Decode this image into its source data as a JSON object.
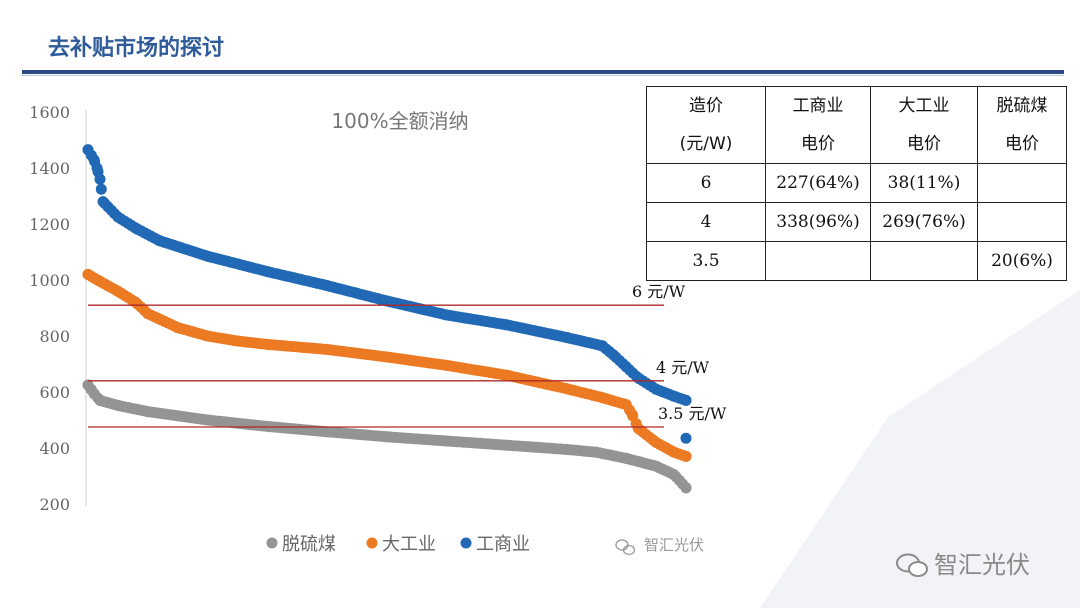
{
  "slide": {
    "title": "去补贴市场的探讨",
    "footer_logo": "智汇光伏",
    "watermark": "智汇光伏"
  },
  "table": {
    "header": [
      [
        "造价",
        "(元/W)"
      ],
      [
        "工商业",
        "电价"
      ],
      [
        "大工业",
        "电价"
      ],
      [
        "脱硫煤",
        "电价"
      ]
    ],
    "rows": [
      [
        "6",
        "227(64%)",
        "38(11%)",
        ""
      ],
      [
        "4",
        "338(96%)",
        "269(76%)",
        ""
      ],
      [
        "3.5",
        "",
        "",
        "20(6%)"
      ]
    ]
  },
  "colors": {
    "工商业": "#2169b5",
    "大工业": "#ec7a23",
    "脱硫煤": "#949494",
    "reference_lines": "#b02828",
    "title": "#2e5b9a"
  },
  "chart_data": {
    "type": "scatter",
    "title": "100%全额消纳",
    "xlabel": "",
    "ylabel": "",
    "ylim": [
      200,
      1600
    ],
    "yticks": [
      1600,
      1400,
      1200,
      1000,
      800,
      600,
      400,
      200
    ],
    "grid": false,
    "legend_position": "bottom",
    "x_fraction_note_units": "fraction of sorted sample (0–1)",
    "series": [
      {
        "name": "脱硫煤",
        "points": [
          [
            0,
            625
          ],
          [
            0.005,
            610
          ],
          [
            0.01,
            595
          ],
          [
            0.02,
            570
          ],
          [
            0.05,
            552
          ],
          [
            0.1,
            530
          ],
          [
            0.2,
            500
          ],
          [
            0.3,
            477
          ],
          [
            0.4,
            458
          ],
          [
            0.5,
            440
          ],
          [
            0.6,
            425
          ],
          [
            0.7,
            410
          ],
          [
            0.8,
            395
          ],
          [
            0.85,
            385
          ],
          [
            0.9,
            363
          ],
          [
            0.95,
            335
          ],
          [
            0.98,
            305
          ],
          [
            1.0,
            258
          ]
        ]
      },
      {
        "name": "大工业",
        "points": [
          [
            0,
            1020
          ],
          [
            0.02,
            995
          ],
          [
            0.05,
            960
          ],
          [
            0.08,
            920
          ],
          [
            0.1,
            880
          ],
          [
            0.15,
            830
          ],
          [
            0.2,
            800
          ],
          [
            0.25,
            782
          ],
          [
            0.3,
            770
          ],
          [
            0.4,
            752
          ],
          [
            0.5,
            725
          ],
          [
            0.6,
            695
          ],
          [
            0.7,
            660
          ],
          [
            0.8,
            612
          ],
          [
            0.86,
            580
          ],
          [
            0.9,
            555
          ],
          [
            0.91,
            520
          ],
          [
            0.92,
            470
          ],
          [
            0.95,
            420
          ],
          [
            0.98,
            385
          ],
          [
            1.0,
            370
          ]
        ]
      },
      {
        "name": "工商业",
        "points": [
          [
            0,
            1465
          ],
          [
            0.01,
            1430
          ],
          [
            0.015,
            1400
          ],
          [
            0.02,
            1360
          ],
          [
            0.025,
            1280
          ],
          [
            0.05,
            1225
          ],
          [
            0.08,
            1185
          ],
          [
            0.12,
            1140
          ],
          [
            0.2,
            1085
          ],
          [
            0.3,
            1030
          ],
          [
            0.4,
            980
          ],
          [
            0.5,
            925
          ],
          [
            0.6,
            875
          ],
          [
            0.7,
            840
          ],
          [
            0.8,
            795
          ],
          [
            0.86,
            765
          ],
          [
            0.88,
            730
          ],
          [
            0.9,
            690
          ],
          [
            0.92,
            650
          ],
          [
            0.95,
            610
          ],
          [
            0.98,
            585
          ],
          [
            1.0,
            570
          ],
          [
            1.0,
            435
          ]
        ]
      }
    ],
    "reference_lines": [
      {
        "label": "6 元/W",
        "y": 910
      },
      {
        "label": "4 元/W",
        "y": 640
      },
      {
        "label": "3.5 元/W",
        "y": 475
      }
    ]
  }
}
